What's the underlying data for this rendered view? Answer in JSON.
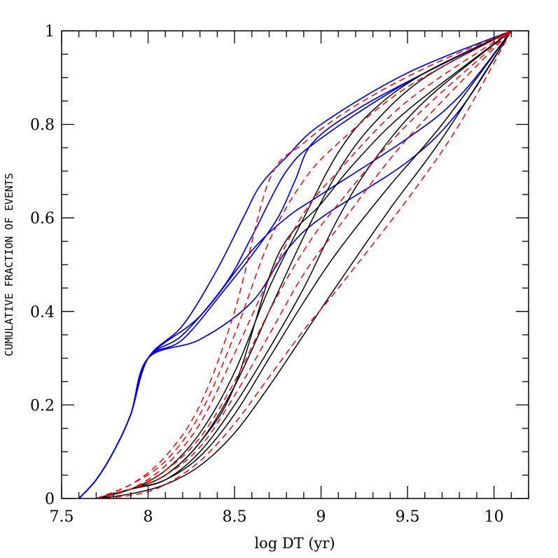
{
  "chart_data": {
    "type": "line",
    "title": "",
    "xlabel": "log DT (yr)",
    "ylabel": "CUMULATIVE FRACTION OF EVENTS",
    "xlim": [
      7.5,
      10.2
    ],
    "ylim": [
      0,
      1
    ],
    "xticks": [
      "7.5",
      "8",
      "8.5",
      "9",
      "9.5",
      "10"
    ],
    "yticks": [
      "0",
      "0.2",
      "0.4",
      "0.6",
      "0.8",
      "1"
    ],
    "grid": false,
    "legend": "none",
    "colors": {
      "blue": "#0000dd",
      "black": "#000000",
      "red": "#ee0000"
    },
    "series": [
      {
        "color": "blue",
        "style": "solid",
        "points": [
          [
            7.6,
            0
          ],
          [
            7.7,
            0.04
          ],
          [
            7.8,
            0.1
          ],
          [
            7.9,
            0.18
          ],
          [
            8.0,
            0.3
          ],
          [
            8.2,
            0.37
          ],
          [
            8.4,
            0.49
          ],
          [
            8.55,
            0.6
          ],
          [
            8.65,
            0.67
          ],
          [
            8.8,
            0.73
          ],
          [
            9.0,
            0.8
          ],
          [
            9.5,
            0.91
          ],
          [
            10.1,
            1.0
          ]
        ]
      },
      {
        "color": "blue",
        "style": "solid",
        "points": [
          [
            7.6,
            0
          ],
          [
            7.7,
            0.04
          ],
          [
            7.8,
            0.1
          ],
          [
            7.9,
            0.18
          ],
          [
            8.0,
            0.3
          ],
          [
            8.2,
            0.35
          ],
          [
            8.45,
            0.46
          ],
          [
            8.6,
            0.56
          ],
          [
            8.8,
            0.7
          ],
          [
            9.0,
            0.77
          ],
          [
            9.5,
            0.89
          ],
          [
            10.1,
            1.0
          ]
        ]
      },
      {
        "color": "blue",
        "style": "solid",
        "points": [
          [
            7.6,
            0
          ],
          [
            7.7,
            0.04
          ],
          [
            7.8,
            0.1
          ],
          [
            7.9,
            0.18
          ],
          [
            8.0,
            0.3
          ],
          [
            8.2,
            0.34
          ],
          [
            8.45,
            0.45
          ],
          [
            8.6,
            0.52
          ],
          [
            8.75,
            0.6
          ],
          [
            8.85,
            0.68
          ],
          [
            8.95,
            0.76
          ],
          [
            9.2,
            0.83
          ],
          [
            9.6,
            0.91
          ],
          [
            10.1,
            1.0
          ]
        ]
      },
      {
        "color": "blue",
        "style": "solid",
        "points": [
          [
            7.6,
            0
          ],
          [
            7.7,
            0.04
          ],
          [
            7.8,
            0.1
          ],
          [
            7.9,
            0.18
          ],
          [
            8.0,
            0.3
          ],
          [
            8.3,
            0.39
          ],
          [
            8.6,
            0.53
          ],
          [
            8.8,
            0.6
          ],
          [
            9.0,
            0.65
          ],
          [
            9.5,
            0.77
          ],
          [
            9.8,
            0.86
          ],
          [
            10.1,
            1.0
          ]
        ]
      },
      {
        "color": "blue",
        "style": "solid",
        "points": [
          [
            7.6,
            0
          ],
          [
            7.7,
            0.04
          ],
          [
            7.8,
            0.1
          ],
          [
            7.9,
            0.18
          ],
          [
            8.0,
            0.3
          ],
          [
            8.3,
            0.34
          ],
          [
            8.6,
            0.42
          ],
          [
            8.8,
            0.53
          ],
          [
            9.0,
            0.6
          ],
          [
            9.5,
            0.72
          ],
          [
            9.8,
            0.83
          ],
          [
            10.1,
            1.0
          ]
        ]
      },
      {
        "color": "black",
        "style": "solid",
        "points": [
          [
            7.7,
            0
          ],
          [
            7.9,
            0.02
          ],
          [
            8.1,
            0.06
          ],
          [
            8.3,
            0.14
          ],
          [
            8.5,
            0.27
          ],
          [
            8.7,
            0.45
          ],
          [
            8.9,
            0.6
          ],
          [
            9.1,
            0.74
          ],
          [
            9.3,
            0.83
          ],
          [
            9.6,
            0.91
          ],
          [
            10.1,
            1.0
          ]
        ]
      },
      {
        "color": "black",
        "style": "solid",
        "points": [
          [
            7.7,
            0
          ],
          [
            7.9,
            0.02
          ],
          [
            8.1,
            0.05
          ],
          [
            8.3,
            0.12
          ],
          [
            8.5,
            0.24
          ],
          [
            8.7,
            0.4
          ],
          [
            8.9,
            0.56
          ],
          [
            9.1,
            0.7
          ],
          [
            9.3,
            0.8
          ],
          [
            9.6,
            0.9
          ],
          [
            10.1,
            1.0
          ]
        ]
      },
      {
        "color": "black",
        "style": "solid",
        "points": [
          [
            7.7,
            0
          ],
          [
            7.9,
            0.02
          ],
          [
            8.1,
            0.05
          ],
          [
            8.3,
            0.12
          ],
          [
            8.5,
            0.24
          ],
          [
            8.75,
            0.52
          ],
          [
            9.0,
            0.63
          ],
          [
            9.2,
            0.72
          ],
          [
            9.5,
            0.83
          ],
          [
            10.1,
            1.0
          ]
        ]
      },
      {
        "color": "black",
        "style": "solid",
        "points": [
          [
            7.7,
            0
          ],
          [
            7.9,
            0.02
          ],
          [
            8.1,
            0.04
          ],
          [
            8.3,
            0.1
          ],
          [
            8.5,
            0.2
          ],
          [
            8.7,
            0.32
          ],
          [
            8.9,
            0.45
          ],
          [
            9.1,
            0.6
          ],
          [
            9.3,
            0.72
          ],
          [
            9.6,
            0.85
          ],
          [
            10.1,
            1.0
          ]
        ]
      },
      {
        "color": "black",
        "style": "solid",
        "points": [
          [
            7.7,
            0
          ],
          [
            7.9,
            0.02
          ],
          [
            8.1,
            0.04
          ],
          [
            8.3,
            0.09
          ],
          [
            8.5,
            0.18
          ],
          [
            8.7,
            0.3
          ],
          [
            8.9,
            0.42
          ],
          [
            9.1,
            0.53
          ],
          [
            9.4,
            0.67
          ],
          [
            9.7,
            0.8
          ],
          [
            10.1,
            1.0
          ]
        ]
      },
      {
        "color": "black",
        "style": "solid",
        "points": [
          [
            7.7,
            0
          ],
          [
            7.9,
            0.01
          ],
          [
            8.1,
            0.03
          ],
          [
            8.3,
            0.07
          ],
          [
            8.5,
            0.14
          ],
          [
            8.7,
            0.24
          ],
          [
            8.9,
            0.35
          ],
          [
            9.1,
            0.46
          ],
          [
            9.4,
            0.62
          ],
          [
            9.7,
            0.77
          ],
          [
            10.1,
            1.0
          ]
        ]
      },
      {
        "color": "red",
        "style": "dashed",
        "points": [
          [
            7.7,
            0
          ],
          [
            7.9,
            0.03
          ],
          [
            8.1,
            0.09
          ],
          [
            8.3,
            0.2
          ],
          [
            8.5,
            0.4
          ],
          [
            8.7,
            0.68
          ],
          [
            8.9,
            0.76
          ],
          [
            9.2,
            0.84
          ],
          [
            9.6,
            0.92
          ],
          [
            10.1,
            1.0
          ]
        ]
      },
      {
        "color": "red",
        "style": "dashed",
        "points": [
          [
            7.7,
            0
          ],
          [
            7.9,
            0.03
          ],
          [
            8.1,
            0.08
          ],
          [
            8.3,
            0.18
          ],
          [
            8.5,
            0.35
          ],
          [
            8.7,
            0.55
          ],
          [
            8.9,
            0.68
          ],
          [
            9.1,
            0.76
          ],
          [
            9.5,
            0.88
          ],
          [
            10.1,
            1.0
          ]
        ]
      },
      {
        "color": "red",
        "style": "dashed",
        "points": [
          [
            7.7,
            0
          ],
          [
            7.9,
            0.02
          ],
          [
            8.1,
            0.07
          ],
          [
            8.3,
            0.16
          ],
          [
            8.5,
            0.31
          ],
          [
            8.7,
            0.47
          ],
          [
            8.9,
            0.61
          ],
          [
            9.1,
            0.7
          ],
          [
            9.5,
            0.85
          ],
          [
            10.1,
            1.0
          ]
        ]
      },
      {
        "color": "red",
        "style": "dashed",
        "points": [
          [
            7.7,
            0
          ],
          [
            7.9,
            0.02
          ],
          [
            8.1,
            0.06
          ],
          [
            8.3,
            0.13
          ],
          [
            8.5,
            0.25
          ],
          [
            8.7,
            0.4
          ],
          [
            8.9,
            0.53
          ],
          [
            9.1,
            0.63
          ],
          [
            9.5,
            0.8
          ],
          [
            10.1,
            1.0
          ]
        ]
      },
      {
        "color": "red",
        "style": "dashed",
        "points": [
          [
            7.7,
            0
          ],
          [
            7.9,
            0.02
          ],
          [
            8.1,
            0.05
          ],
          [
            8.3,
            0.11
          ],
          [
            8.5,
            0.22
          ],
          [
            8.7,
            0.35
          ],
          [
            8.9,
            0.48
          ],
          [
            9.1,
            0.58
          ],
          [
            9.5,
            0.77
          ],
          [
            10.1,
            1.0
          ]
        ]
      },
      {
        "color": "red",
        "style": "dashed",
        "points": [
          [
            7.75,
            0
          ],
          [
            7.95,
            0.01
          ],
          [
            8.1,
            0.03
          ],
          [
            8.3,
            0.08
          ],
          [
            8.5,
            0.16
          ],
          [
            8.7,
            0.26
          ],
          [
            8.9,
            0.36
          ],
          [
            9.1,
            0.45
          ],
          [
            9.5,
            0.64
          ],
          [
            9.8,
            0.8
          ],
          [
            10.1,
            1.0
          ]
        ]
      }
    ]
  }
}
